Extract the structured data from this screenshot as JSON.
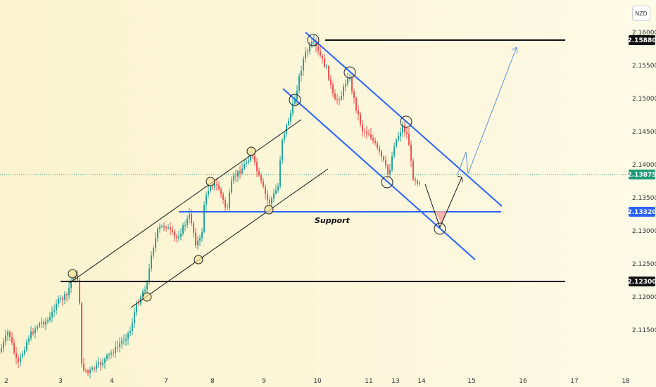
{
  "toolbar": {
    "currency": "NZD"
  },
  "chart_data": {
    "type": "candlestick",
    "x_ticks": [
      "2",
      "3",
      "4",
      "7",
      "8",
      "9",
      "10",
      "11",
      "13",
      "14",
      "15",
      "16",
      "17",
      "18"
    ],
    "y_ticks": [
      "2.16000",
      "2.15500",
      "2.15000",
      "2.14500",
      "2.14000",
      "2.13500",
      "2.13000",
      "2.12500",
      "2.12000",
      "2.11500"
    ],
    "ylim": [
      2.1118,
      2.162
    ],
    "price_tags": [
      {
        "id": "resistance",
        "value": "2.15880",
        "color": "#111111"
      },
      {
        "id": "last",
        "value": "2.13875",
        "color": "#1e9a76"
      },
      {
        "id": "support",
        "value": "2.13320",
        "color": "#2962ff"
      },
      {
        "id": "low",
        "value": "2.12300",
        "color": "#111111"
      }
    ],
    "annotations": {
      "support_label": "Support"
    },
    "colors": {
      "up": "#26a69a",
      "down": "#ef5350",
      "channel": "#2962ff",
      "forecast": "#5b8fd8"
    }
  }
}
